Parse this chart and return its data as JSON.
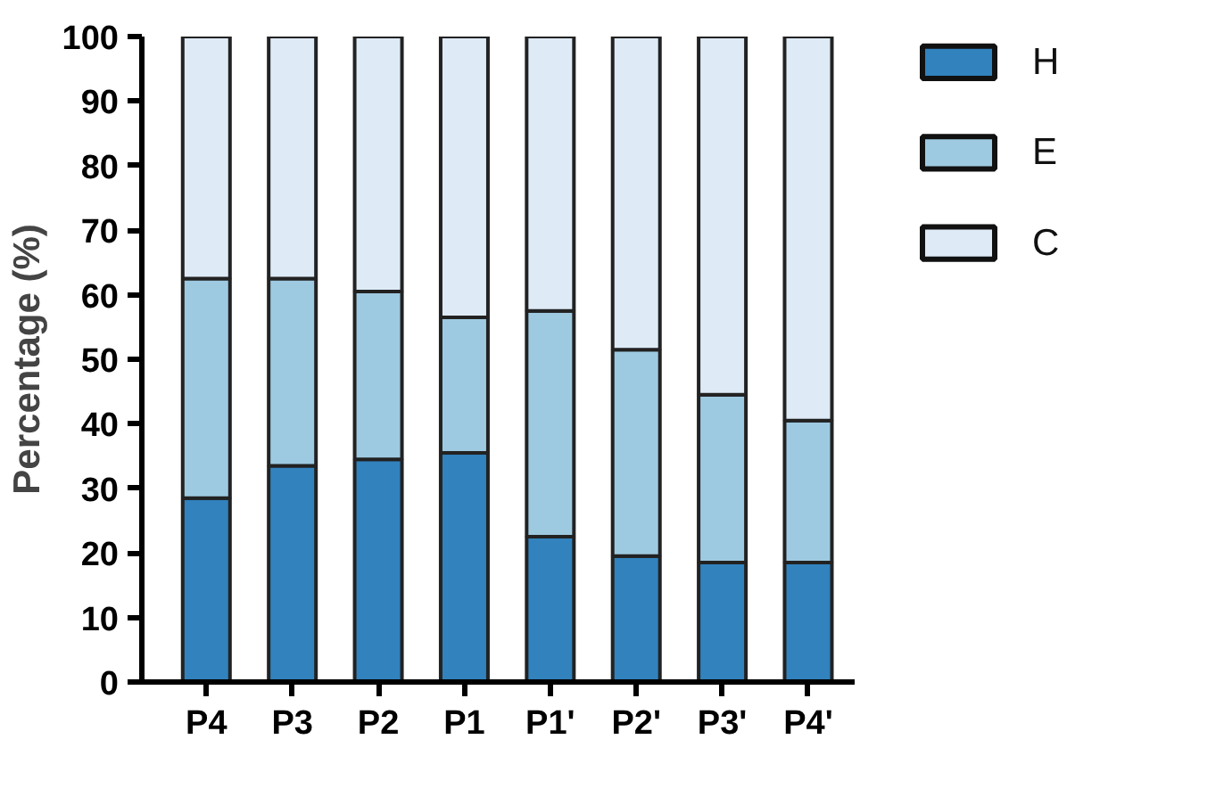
{
  "chart_data": {
    "type": "bar",
    "stacked": true,
    "ylabel": "Percentage (%)",
    "categories": [
      "P4",
      "P3",
      "P2",
      "P1",
      "P1'",
      "P2'",
      "P3'",
      "P4'"
    ],
    "series": [
      {
        "name": "H",
        "color": "#3182bd",
        "values": [
          28.5,
          33.5,
          34.5,
          35.5,
          22.5,
          19.5,
          18.5,
          18.5
        ]
      },
      {
        "name": "E",
        "color": "#9ecae1",
        "values": [
          34,
          29,
          26,
          21,
          35,
          32,
          26,
          22
        ]
      },
      {
        "name": "C",
        "color": "#deebf7",
        "values": [
          37.5,
          37.5,
          39.5,
          43.5,
          42.5,
          48.5,
          55.5,
          59.5
        ]
      }
    ],
    "ylim": [
      0,
      100
    ],
    "yticks": [
      0,
      10,
      20,
      30,
      40,
      50,
      60,
      70,
      80,
      90,
      100
    ],
    "legend": "right"
  }
}
